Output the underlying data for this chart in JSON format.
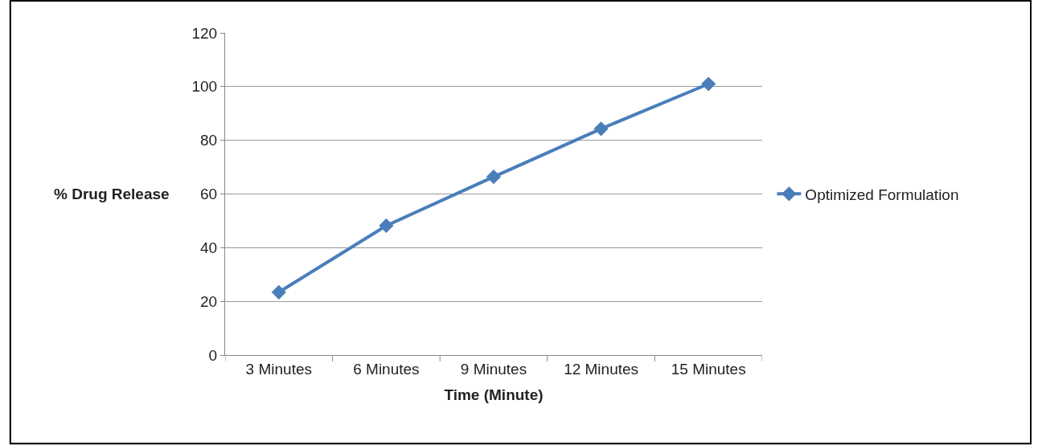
{
  "chart_data": {
    "type": "line",
    "xlabel": "Time (Minute)",
    "ylabel": "% Drug Release",
    "categories": [
      "3 Minutes",
      "6 Minutes",
      "9 Minutes",
      "12 Minutes",
      "15 Minutes"
    ],
    "series": [
      {
        "name": "Optimized Formulation",
        "color": "#4a7ebb",
        "values": [
          23.4,
          48.2,
          66.4,
          84.3,
          101
        ]
      }
    ],
    "ylim": [
      0,
      120
    ],
    "yticks": [
      0,
      20,
      40,
      60,
      80,
      100,
      120
    ],
    "grid": "y",
    "legend": "right",
    "marker": "diamond",
    "line_style": "solid"
  }
}
